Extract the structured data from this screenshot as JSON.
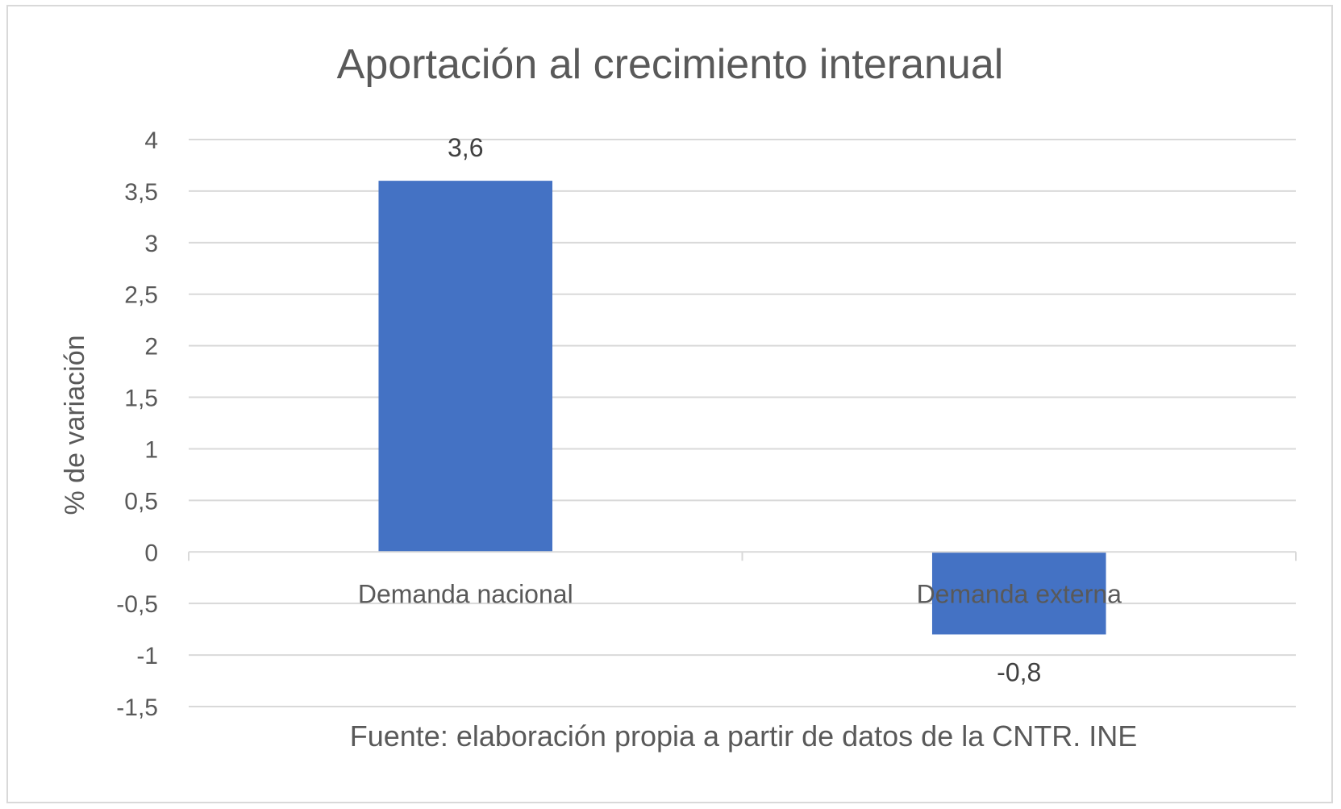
{
  "chart_data": {
    "type": "bar",
    "title": "Aportación al crecimiento interanual",
    "ylabel": "% de variación",
    "xlabel": "",
    "categories": [
      "Demanda nacional",
      "Demanda externa"
    ],
    "values": [
      3.6,
      -0.8
    ],
    "data_labels": [
      "3,6",
      "-0,8"
    ],
    "ylim": [
      -1.5,
      4
    ],
    "yticks": [
      4,
      3.5,
      3,
      2.5,
      2,
      1.5,
      1,
      0.5,
      0,
      -0.5,
      -1,
      -1.5
    ],
    "ytick_labels": [
      "4",
      "3,5",
      "3",
      "2,5",
      "2",
      "1,5",
      "1",
      "0,5",
      "0",
      "-0,5",
      "-1",
      "-1,5"
    ],
    "grid": true,
    "legend": "none",
    "bar_color": "#4472c4",
    "grid_color": "#d9d9d9"
  },
  "source_note": "Fuente: elaboración propia a partir de datos de la CNTR. INE"
}
